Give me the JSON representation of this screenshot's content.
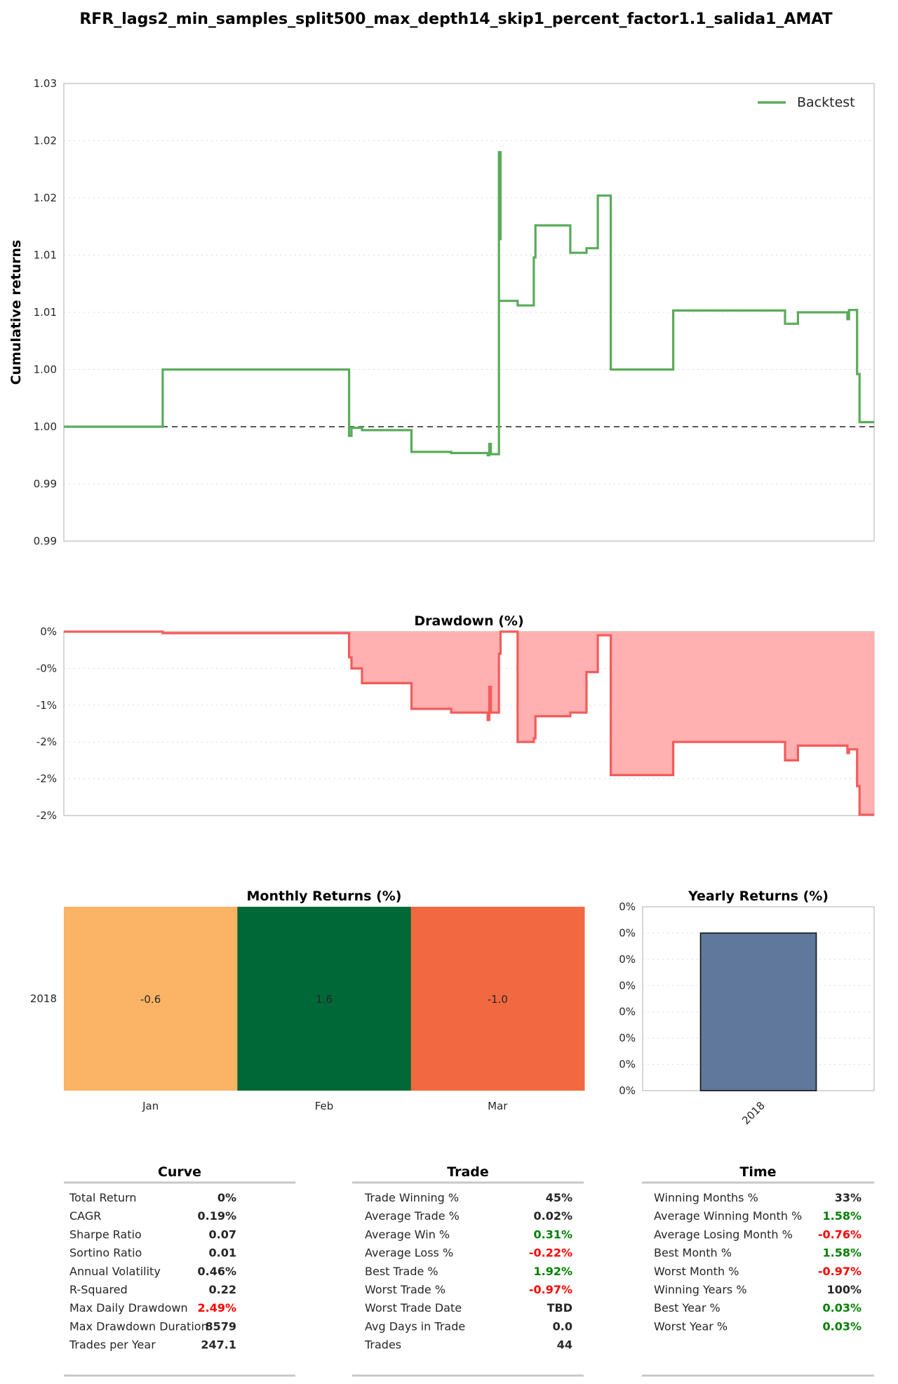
{
  "figure_title": "RFR_lags2_min_samples_split500_max_depth14_skip1_percent_factor1.1_salida1_AMAT",
  "colors": {
    "equity": "#5aab5a",
    "drawdown_line": "#f45b5b",
    "drawdown_fill": "#ffb0b0",
    "yearly_bar": "#5f789c",
    "pos": "#008000",
    "neg": "#ff0000",
    "neutral": "#262626"
  },
  "chart_data": [
    {
      "id": "equity",
      "type": "line",
      "title": "",
      "ylabel": "Cumulative returns",
      "yticks": [
        "1.03",
        "1.02",
        "1.02",
        "1.01",
        "1.01",
        "1.00",
        "1.00",
        "0.99",
        "0.99"
      ],
      "ylim": [
        0.995,
        1.015
      ],
      "xlim": [
        0,
        1
      ],
      "grid": true,
      "legend": "top-right",
      "baseline": 1.0,
      "series": [
        {
          "name": "Backtest",
          "x": [
            0,
            0.122,
            0.122,
            0.352,
            0.352,
            0.355,
            0.355,
            0.368,
            0.368,
            0.429,
            0.429,
            0.478,
            0.478,
            0.523,
            0.523,
            0.525,
            0.525,
            0.527,
            0.527,
            0.537,
            0.537,
            0.539,
            0.539,
            0.537,
            0.537,
            0.56,
            0.56,
            0.58,
            0.58,
            0.582,
            0.582,
            0.625,
            0.625,
            0.645,
            0.645,
            0.659,
            0.659,
            0.675,
            0.675,
            0.675,
            0.675,
            0.752,
            0.752,
            0.89,
            0.89,
            0.906,
            0.906,
            0.967,
            0.967,
            0.969,
            0.969,
            0.979,
            0.979,
            0.982,
            0.982,
            1.0
          ],
          "y": [
            1.0,
            1.0,
            1.0025,
            1.0025,
            0.9996,
            0.9996,
            0.99995,
            0.99995,
            0.99985,
            0.99985,
            0.9989,
            0.9989,
            0.99885,
            0.99885,
            0.99875,
            0.99875,
            0.99925,
            0.99925,
            0.9988,
            0.9988,
            1.0082,
            1.0082,
            1.012,
            1.012,
            1.0055,
            1.0055,
            1.0053,
            1.0053,
            1.0074,
            1.0074,
            1.0088,
            1.0088,
            1.0076,
            1.0076,
            1.0078,
            1.0078,
            1.0101,
            1.0101,
            1.0082,
            1.0082,
            1.0025,
            1.0025,
            1.00508,
            1.00508,
            1.0045,
            1.0045,
            1.005,
            1.005,
            1.0047,
            1.0047,
            1.0051,
            1.0051,
            1.0023,
            1.0023,
            1.0002,
            1.0002
          ]
        }
      ]
    },
    {
      "id": "drawdown",
      "type": "area",
      "title": "Drawdown (%)",
      "yticks": [
        "0%",
        "-0%",
        "-1%",
        "-2%",
        "-2%",
        "-2%"
      ],
      "ylim": [
        -2.5,
        0
      ],
      "xlim": [
        0,
        1
      ],
      "grid": true,
      "series": [
        {
          "name": "",
          "x": [
            0,
            0.122,
            0.122,
            0.352,
            0.352,
            0.355,
            0.355,
            0.368,
            0.368,
            0.429,
            0.429,
            0.478,
            0.478,
            0.523,
            0.523,
            0.525,
            0.525,
            0.527,
            0.527,
            0.537,
            0.537,
            0.539,
            0.539,
            0.56,
            0.56,
            0.58,
            0.58,
            0.582,
            0.582,
            0.625,
            0.625,
            0.645,
            0.645,
            0.659,
            0.659,
            0.675,
            0.675,
            0.752,
            0.752,
            0.89,
            0.89,
            0.906,
            0.906,
            0.967,
            0.967,
            0.969,
            0.969,
            0.979,
            0.979,
            0.982,
            0.982,
            1.0
          ],
          "y": [
            0,
            0,
            -0.02,
            -0.02,
            -0.35,
            -0.35,
            -0.5,
            -0.5,
            -0.7,
            -0.7,
            -1.05,
            -1.05,
            -1.1,
            -1.1,
            -1.2,
            -1.2,
            -0.75,
            -0.75,
            -1.1,
            -1.1,
            -0.3,
            -0.3,
            0,
            0,
            -1.5,
            -1.5,
            -1.45,
            -1.45,
            -1.15,
            -1.15,
            -1.1,
            -1.1,
            -0.55,
            -0.55,
            -0.05,
            -0.05,
            -1.95,
            -1.95,
            -1.5,
            -1.5,
            -1.75,
            -1.75,
            -1.55,
            -1.55,
            -1.65,
            -1.65,
            -1.6,
            -1.6,
            -2.1,
            -2.1,
            -2.49,
            -2.49
          ]
        }
      ]
    },
    {
      "id": "monthly",
      "type": "heatmap",
      "title": "Monthly Returns (%)",
      "rows": [
        "2018"
      ],
      "columns": [
        "Jan",
        "Feb",
        "Mar"
      ],
      "values": [
        [
          -0.6,
          1.6,
          -1.0
        ]
      ],
      "labels": [
        [
          "-0.6",
          "1.6",
          "-1.0"
        ]
      ],
      "cell_colors": [
        [
          "#fbb365",
          "#006837",
          "#f26841"
        ]
      ],
      "label_colors": [
        [
          "#262626",
          "#ffffff",
          "#ffffff"
        ]
      ]
    },
    {
      "id": "yearly",
      "type": "bar",
      "title": "Yearly Returns (%)",
      "categories": [
        "2018"
      ],
      "values": [
        0.03
      ],
      "yticks": [
        "0%",
        "0%",
        "0%",
        "0%",
        "0%",
        "0%",
        "0%",
        "0%"
      ],
      "ylim": [
        0,
        0.035
      ],
      "grid": true
    }
  ],
  "stats": [
    {
      "title": "Curve",
      "rows": [
        {
          "label": "Total Return",
          "value": "0%",
          "tone": "neutral"
        },
        {
          "label": "CAGR",
          "value": "0.19%",
          "tone": "neutral"
        },
        {
          "label": "Sharpe Ratio",
          "value": "0.07",
          "tone": "neutral"
        },
        {
          "label": "Sortino Ratio",
          "value": "0.01",
          "tone": "neutral"
        },
        {
          "label": "Annual Volatility",
          "value": "0.46%",
          "tone": "neutral"
        },
        {
          "label": "R-Squared",
          "value": "0.22",
          "tone": "neutral"
        },
        {
          "label": "Max Daily Drawdown",
          "value": "2.49%",
          "tone": "neg"
        },
        {
          "label": "Max Drawdown Duration",
          "value": "8579",
          "tone": "neutral"
        },
        {
          "label": "Trades per Year",
          "value": "247.1",
          "tone": "neutral"
        }
      ]
    },
    {
      "title": "Trade",
      "rows": [
        {
          "label": "Trade Winning %",
          "value": "45%",
          "tone": "neutral"
        },
        {
          "label": "Average Trade %",
          "value": "0.02%",
          "tone": "neutral"
        },
        {
          "label": "Average Win %",
          "value": "0.31%",
          "tone": "pos"
        },
        {
          "label": "Average Loss %",
          "value": "-0.22%",
          "tone": "neg"
        },
        {
          "label": "Best Trade %",
          "value": "1.92%",
          "tone": "pos"
        },
        {
          "label": "Worst Trade %",
          "value": "-0.97%",
          "tone": "neg"
        },
        {
          "label": "Worst Trade Date",
          "value": "TBD",
          "tone": "neutral"
        },
        {
          "label": "Avg Days in Trade",
          "value": "0.0",
          "tone": "neutral"
        },
        {
          "label": "Trades",
          "value": "44",
          "tone": "neutral"
        }
      ]
    },
    {
      "title": "Time",
      "rows": [
        {
          "label": "Winning Months %",
          "value": "33%",
          "tone": "neutral"
        },
        {
          "label": "Average Winning Month %",
          "value": "1.58%",
          "tone": "pos"
        },
        {
          "label": "Average Losing Month %",
          "value": "-0.76%",
          "tone": "neg"
        },
        {
          "label": "Best Month %",
          "value": "1.58%",
          "tone": "pos"
        },
        {
          "label": "Worst Month %",
          "value": "-0.97%",
          "tone": "neg"
        },
        {
          "label": "Winning Years %",
          "value": "100%",
          "tone": "neutral"
        },
        {
          "label": "Best Year %",
          "value": "0.03%",
          "tone": "pos"
        },
        {
          "label": "Worst Year %",
          "value": "0.03%",
          "tone": "pos"
        }
      ]
    }
  ]
}
